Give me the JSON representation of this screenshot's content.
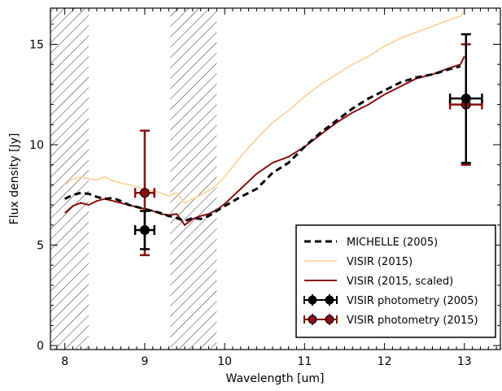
{
  "chart_data": {
    "type": "line",
    "title": "",
    "xlabel": "Wavelength [um]",
    "ylabel": "Flux density [Jy]",
    "xlim": [
      7.82,
      13.45
    ],
    "ylim": [
      -0.2,
      16.8
    ],
    "xticks": [
      8,
      9,
      10,
      11,
      12,
      13
    ],
    "yticks": [
      0,
      5,
      10,
      15
    ],
    "grid": false,
    "legend_position": "bottom-right",
    "hatched_bands": [
      [
        7.82,
        8.3
      ],
      [
        9.32,
        9.9
      ]
    ],
    "series": [
      {
        "name": "MICHELLE (2005)",
        "style": "dashed",
        "color": "#000000",
        "x": [
          8.0,
          8.1,
          8.2,
          8.3,
          8.4,
          8.5,
          8.6,
          8.7,
          8.8,
          8.9,
          9.0,
          9.1,
          9.2,
          9.3,
          9.4,
          9.5,
          9.6,
          9.7,
          9.8,
          9.9,
          10.0,
          10.2,
          10.4,
          10.5,
          10.6,
          10.8,
          11.0,
          11.2,
          11.4,
          11.6,
          11.8,
          12.0,
          12.2,
          12.4,
          12.6,
          12.8,
          12.95
        ],
        "y": [
          7.3,
          7.5,
          7.6,
          7.55,
          7.4,
          7.3,
          7.35,
          7.2,
          7.0,
          6.9,
          6.8,
          6.7,
          6.6,
          6.45,
          6.35,
          6.2,
          6.35,
          6.3,
          6.45,
          6.7,
          6.95,
          7.4,
          7.8,
          8.2,
          8.6,
          9.1,
          9.9,
          10.6,
          11.2,
          11.8,
          12.3,
          12.7,
          13.1,
          13.35,
          13.5,
          13.75,
          13.9
        ]
      },
      {
        "name": "VISIR (2015)",
        "style": "solid",
        "color": "#fcd8a8",
        "x": [
          8.0,
          8.1,
          8.2,
          8.3,
          8.4,
          8.5,
          8.6,
          8.7,
          8.8,
          8.9,
          9.0,
          9.1,
          9.2,
          9.3,
          9.4,
          9.5,
          9.6,
          9.7,
          9.8,
          9.9,
          10.0,
          10.2,
          10.4,
          10.6,
          10.8,
          11.0,
          11.2,
          11.4,
          11.6,
          11.8,
          12.0,
          12.2,
          12.4,
          12.6,
          12.8,
          12.95,
          13.0
        ],
        "y": [
          8.0,
          8.3,
          8.4,
          8.3,
          8.25,
          8.4,
          8.2,
          8.1,
          8.0,
          7.9,
          7.8,
          7.7,
          7.6,
          7.45,
          7.6,
          7.1,
          7.3,
          7.5,
          7.7,
          8.0,
          8.4,
          9.4,
          10.3,
          11.1,
          11.7,
          12.4,
          13.0,
          13.5,
          14.0,
          14.4,
          14.9,
          15.3,
          15.6,
          15.9,
          16.2,
          16.4,
          16.6
        ]
      },
      {
        "name": "VISIR (2015, scaled)",
        "style": "solid",
        "color": "#8b1010",
        "x": [
          8.0,
          8.1,
          8.2,
          8.3,
          8.4,
          8.5,
          8.6,
          8.7,
          8.8,
          8.9,
          9.0,
          9.1,
          9.2,
          9.3,
          9.4,
          9.5,
          9.6,
          9.7,
          9.8,
          9.9,
          10.0,
          10.2,
          10.4,
          10.6,
          10.8,
          11.0,
          11.2,
          11.4,
          11.6,
          11.8,
          12.0,
          12.2,
          12.4,
          12.6,
          12.8,
          12.95,
          13.0
        ],
        "y": [
          6.6,
          6.95,
          7.1,
          7.0,
          7.2,
          7.3,
          7.2,
          7.1,
          7.0,
          6.9,
          6.8,
          6.7,
          6.55,
          6.5,
          6.55,
          6.0,
          6.3,
          6.45,
          6.55,
          6.75,
          7.05,
          7.8,
          8.55,
          9.1,
          9.4,
          9.9,
          10.5,
          11.1,
          11.6,
          12.0,
          12.5,
          12.9,
          13.3,
          13.5,
          13.8,
          14.0,
          14.4
        ]
      }
    ],
    "photometry": [
      {
        "name": "VISIR photometry (2005)",
        "color": "#000000",
        "points": [
          {
            "x": 9.0,
            "y": 5.75,
            "xerr": 0.12,
            "yerr": 0.95
          },
          {
            "x": 13.02,
            "y": 12.3,
            "xerr": 0.2,
            "yerr": 3.2
          }
        ]
      },
      {
        "name": "VISIR photometry (2015)",
        "color": "#8b1010",
        "points": [
          {
            "x": 9.0,
            "y": 7.6,
            "xerr": 0.12,
            "yerr": 3.1
          },
          {
            "x": 13.02,
            "y": 12.0,
            "xerr": 0.2,
            "yerr": 3.0
          }
        ]
      }
    ]
  }
}
